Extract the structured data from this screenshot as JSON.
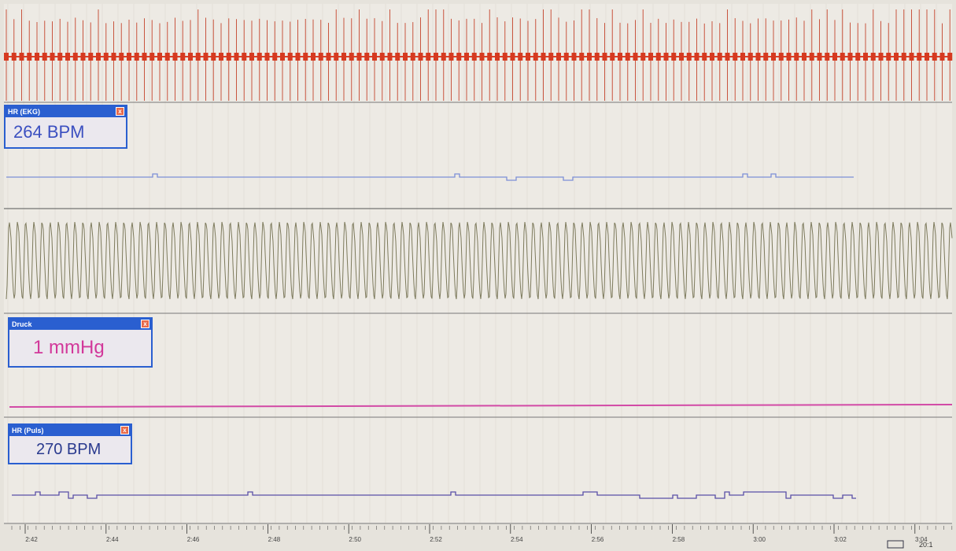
{
  "panels": [
    {
      "label": "HR (EKG)",
      "value": "264 BPM"
    },
    {
      "label": "Druck",
      "value": "1 mmHg"
    },
    {
      "label": "HR (Puls)",
      "value": "270 BPM"
    }
  ],
  "time_axis": {
    "labels": [
      "2:42",
      "2:44",
      "2:46",
      "2:48",
      "2:50",
      "2:52",
      "2:54",
      "2:56",
      "2:58",
      "3:00",
      "3:02",
      "3:04"
    ]
  },
  "zoom": "20:1"
}
